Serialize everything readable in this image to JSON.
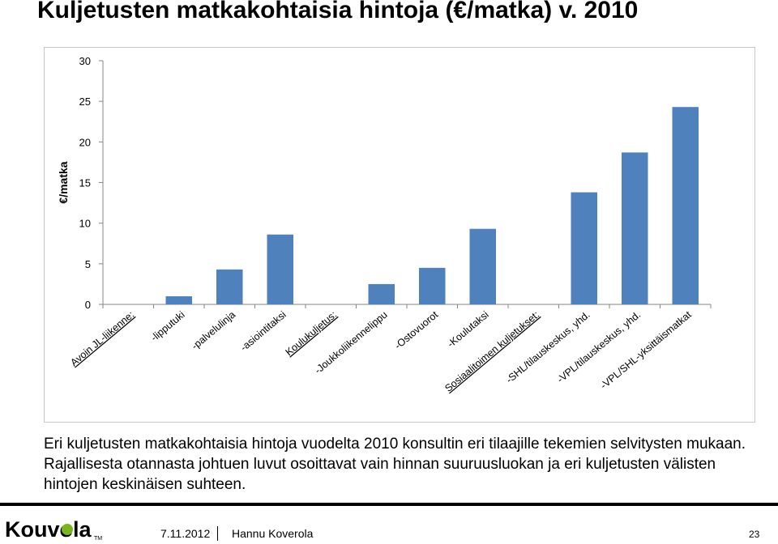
{
  "slide": {
    "title": "Kuljetusten matkakohtaisia hintoja (€/matka) v. 2010",
    "caption": "Eri kuljetusten matkakohtaisia hintoja vuodelta 2010 konsultin eri tilaajille tekemien selvitysten mukaan. Rajallisesta otannasta johtuen luvut osoittavat vain hinnan suuruusluokan ja eri kuljetusten välisten hintojen keskinäisen suhteen.",
    "logo_text": "Kouvola",
    "logo_tm": "TM",
    "date": "7.11.2012",
    "author": "Hannu Koverola",
    "page": "23"
  },
  "colors": {
    "bar": "#4f81bd",
    "axis": "#868686",
    "grid": "#d9d9d9",
    "logo_green": "#7ab51d"
  },
  "chart_data": {
    "type": "bar",
    "ylabel": "€/matka",
    "xlabel": "",
    "ylim": [
      0,
      30
    ],
    "yticks": [
      "0",
      "5",
      "10",
      "15",
      "20",
      "25",
      "30"
    ],
    "grid": false,
    "categories": [
      "Avoin JL-liikenne:",
      "-lipputuki",
      "-palvelulinja",
      "-asiointitaksi",
      "Koulukuljetus:",
      "-Joukkoliikennelippu",
      "-Ostovuorot",
      "-Koulutaksi",
      "Sosiaalitoimen kuljetukset:",
      "-SHL/tilauskeskus, yhd.",
      "-VPL/tilauskeskus, yhd.",
      "-VPL/SHL-yksittäismatkat"
    ],
    "underlined": [
      true,
      false,
      false,
      false,
      true,
      false,
      false,
      false,
      true,
      false,
      false,
      false
    ],
    "values": [
      null,
      1.0,
      4.3,
      8.6,
      null,
      2.5,
      4.5,
      9.3,
      null,
      13.8,
      18.7,
      24.3
    ]
  }
}
